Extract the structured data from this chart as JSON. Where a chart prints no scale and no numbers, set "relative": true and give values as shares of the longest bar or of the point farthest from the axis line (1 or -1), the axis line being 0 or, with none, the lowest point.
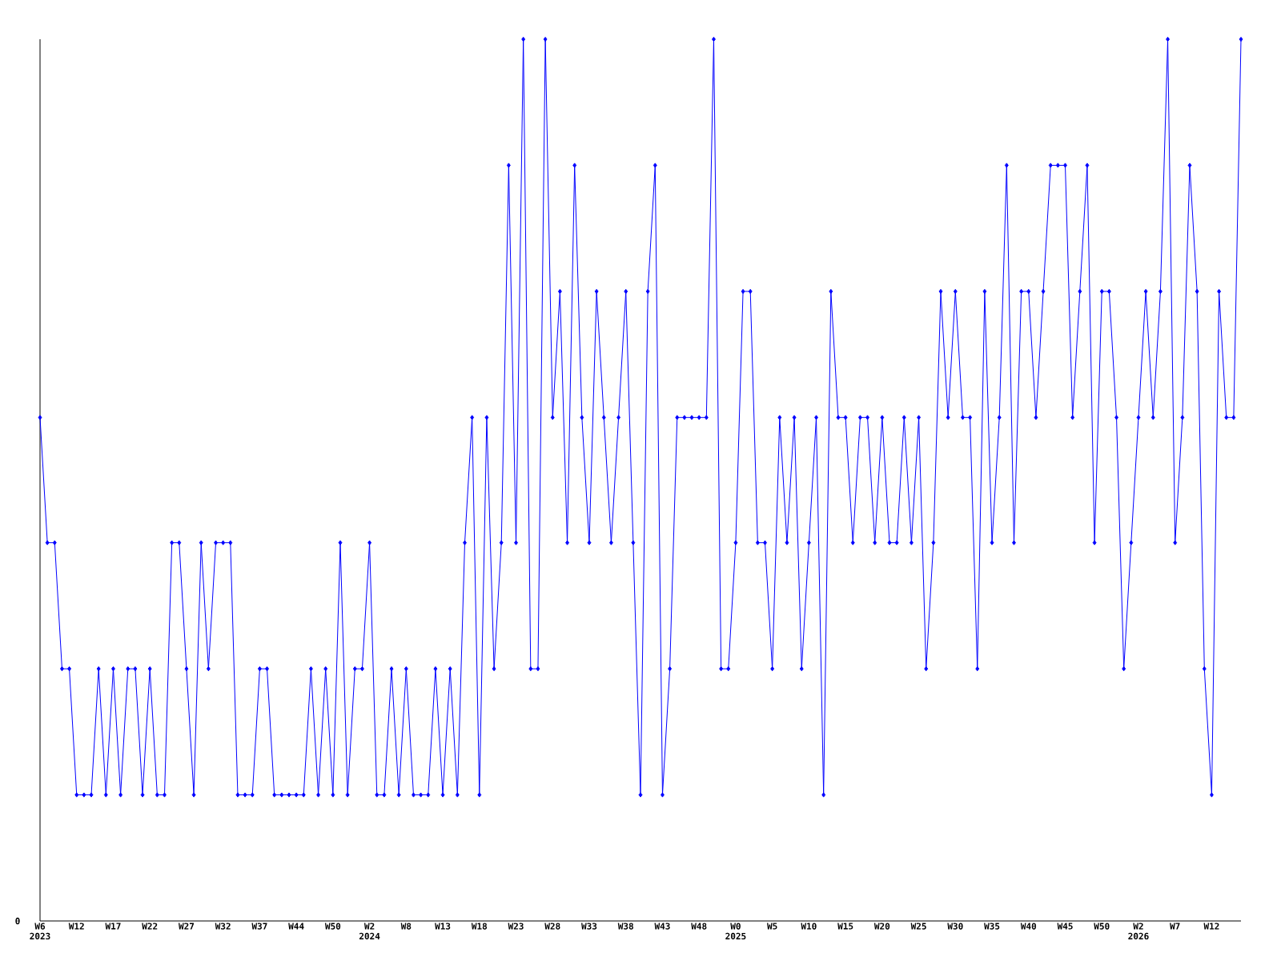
{
  "chart_data": {
    "type": "line",
    "relative": true,
    "annotations": [
      "0"
    ],
    "color": "#0000ff",
    "marker": "diamond",
    "line_style": "solid",
    "categories": [
      "W6 2023",
      null,
      null,
      null,
      null,
      "W12",
      null,
      null,
      null,
      null,
      "W17",
      null,
      null,
      null,
      null,
      "W22",
      null,
      null,
      null,
      null,
      "W27",
      null,
      null,
      null,
      null,
      "W32",
      null,
      null,
      null,
      null,
      "W37",
      null,
      null,
      null,
      null,
      "W44",
      null,
      null,
      null,
      null,
      "W50",
      null,
      null,
      null,
      null,
      "W2 2024",
      null,
      null,
      null,
      null,
      "W8",
      null,
      null,
      null,
      null,
      "W13",
      null,
      null,
      null,
      null,
      "W18",
      null,
      null,
      null,
      null,
      "W23",
      null,
      null,
      null,
      null,
      "W28",
      null,
      null,
      null,
      null,
      "W33",
      null,
      null,
      null,
      null,
      "W38",
      null,
      null,
      null,
      null,
      "W43",
      null,
      null,
      null,
      null,
      "W48",
      null,
      null,
      null,
      null,
      "W0 2025",
      null,
      null,
      null,
      null,
      "W5",
      null,
      null,
      null,
      null,
      "W10",
      null,
      null,
      null,
      null,
      "W15",
      null,
      null,
      null,
      null,
      "W20",
      null,
      null,
      null,
      null,
      "W25",
      null,
      null,
      null,
      null,
      "W30",
      null,
      null,
      null,
      null,
      "W35",
      null,
      null,
      null,
      null,
      "W40",
      null,
      null,
      null,
      null,
      "W45",
      null,
      null,
      null,
      null,
      "W50",
      null,
      null,
      null,
      null,
      "W2 2026",
      null,
      null,
      null,
      null,
      "W7",
      null,
      null,
      null,
      null,
      "W12",
      null,
      null,
      null,
      null
    ],
    "values": [
      0.571,
      0.429,
      0.429,
      0.286,
      0.286,
      0.143,
      0.143,
      0.143,
      0.286,
      0.143,
      0.286,
      0.143,
      0.286,
      0.286,
      0.143,
      0.286,
      0.143,
      0.143,
      0.429,
      0.429,
      0.286,
      0.143,
      0.429,
      0.286,
      0.429,
      0.429,
      0.429,
      0.143,
      0.143,
      0.143,
      0.286,
      0.286,
      0.143,
      0.143,
      0.143,
      0.143,
      0.143,
      0.286,
      0.143,
      0.286,
      0.143,
      0.429,
      0.143,
      0.286,
      0.286,
      0.429,
      0.143,
      0.143,
      0.286,
      0.143,
      0.286,
      0.143,
      0.143,
      0.143,
      0.286,
      0.143,
      0.286,
      0.143,
      0.429,
      0.571,
      0.143,
      0.571,
      0.286,
      0.429,
      0.857,
      0.429,
      1,
      0.286,
      0.286,
      1,
      0.571,
      0.714,
      0.429,
      0.857,
      0.571,
      0.429,
      0.714,
      0.571,
      0.429,
      0.571,
      0.714,
      0.429,
      0.143,
      0.714,
      0.857,
      0.143,
      0.286,
      0.571,
      0.571,
      0.571,
      0.571,
      0.571,
      1,
      0.286,
      0.286,
      0.429,
      0.714,
      0.714,
      0.429,
      0.429,
      0.286,
      0.571,
      0.429,
      0.571,
      0.286,
      0.429,
      0.571,
      0.143,
      0.714,
      0.571,
      0.571,
      0.429,
      0.571,
      0.571,
      0.429,
      0.571,
      0.429,
      0.429,
      0.571,
      0.429,
      0.571,
      0.286,
      0.429,
      0.714,
      0.571,
      0.714,
      0.571,
      0.571,
      0.286,
      0.714,
      0.429,
      0.571,
      0.857,
      0.429,
      0.714,
      0.714,
      0.571,
      0.714,
      0.857,
      0.857,
      0.857,
      0.571,
      0.714,
      0.857,
      0.429,
      0.714,
      0.714,
      0.571,
      0.286,
      0.429,
      0.571,
      0.714,
      0.571,
      0.714,
      1,
      0.429,
      0.571,
      0.857,
      0.714,
      0.286,
      0.143,
      0.714,
      0.571,
      0.571,
      1
    ]
  }
}
